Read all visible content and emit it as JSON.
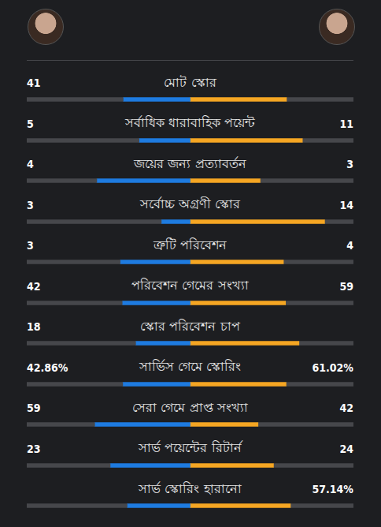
{
  "chart_data": {
    "type": "bar",
    "orientation": "horizontal",
    "stacked": true,
    "data_labels": true,
    "tick_labels": false,
    "grid": false,
    "categories": [
      "মোট স্কোর",
      "সর্বাধিক ধারাবাহিক পয়েন্ট",
      "জয়ের জন্য প্রত্যাবর্তন",
      "সর্বোচ্চ অগ্রণী স্কোর",
      "ত্রুটি পরিবেশন",
      "পরিবেশন গেমের সংখ্যা",
      "স্কোর পরিবেশন চাপ",
      "সার্ভিস গেমে স্কোরিং",
      "সেরা গেমে প্রাপ্ত সংখ্যা",
      "সার্ভ পয়েন্টের রিটার্ন",
      "সার্ভ স্কোরিং হারানো"
    ],
    "series": [
      {
        "color": "#1e7be0",
        "values": [
          41,
          5,
          4,
          3,
          3,
          42,
          18,
          42.86,
          59,
          23,
          35.9
        ],
        "value_labels": [
          "41",
          "5",
          "4",
          "3",
          "3",
          "42",
          "18",
          "42.86%",
          "59",
          "23",
          null
        ]
      },
      {
        "color": "#f5a623",
        "values": [
          59,
          11,
          3,
          14,
          4,
          59,
          36,
          61.02,
          42,
          24,
          57.14
        ],
        "value_labels": [
          null,
          "11",
          "3",
          "14",
          "4",
          "59",
          null,
          "61.02%",
          "42",
          "24",
          "57.14%"
        ]
      }
    ]
  }
}
